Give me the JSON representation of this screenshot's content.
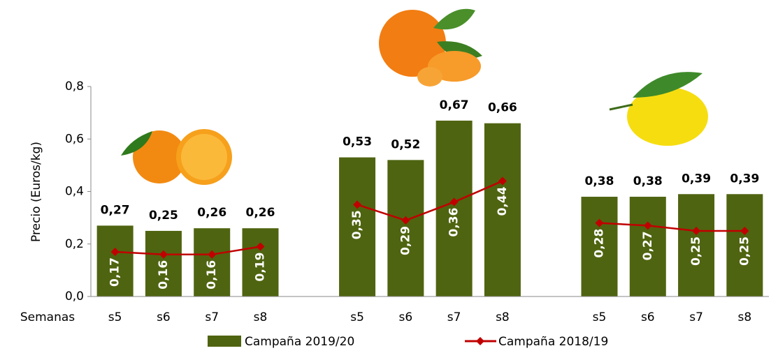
{
  "chart_data": {
    "type": "bar_line",
    "ylabel": "Precio (Euros/kg)",
    "xlabel": "Semanas",
    "categories": [
      "s5",
      "s6",
      "s7",
      "s8",
      null,
      "s5",
      "s6",
      "s7",
      "s8",
      null,
      "s5",
      "s6",
      "s7",
      "s8"
    ],
    "series": [
      {
        "name": "Campaña 2019/20",
        "type": "bar",
        "color": "#4f6410",
        "values": [
          0.27,
          0.25,
          0.26,
          0.26,
          null,
          0.53,
          0.52,
          0.67,
          0.66,
          null,
          0.38,
          0.38,
          0.39,
          0.39
        ],
        "value_labels": [
          "0,27",
          "0,25",
          "0,26",
          "0,26",
          null,
          "0,53",
          "0,52",
          "0,67",
          "0,66",
          null,
          "0,38",
          "0,38",
          "0,39",
          "0,39"
        ]
      },
      {
        "name": "Campaña 2018/19",
        "type": "line",
        "color": "#c00000",
        "values": [
          0.17,
          0.16,
          0.16,
          0.19,
          null,
          0.35,
          0.29,
          0.36,
          0.44,
          null,
          0.28,
          0.27,
          0.25,
          0.25
        ],
        "value_labels": [
          "0,17",
          "0,16",
          "0,16",
          "0,19",
          null,
          "0,35",
          "0,29",
          "0,36",
          "0,44",
          null,
          "0,28",
          "0,27",
          "0,25",
          "0,25"
        ]
      }
    ],
    "ylim": [
      0,
      0.8
    ],
    "yticks": [
      {
        "value": 0,
        "label": "0,0"
      },
      {
        "value": 0.2,
        "label": "0,2"
      },
      {
        "value": 0.4,
        "label": "0,4"
      },
      {
        "value": 0.6,
        "label": "0,6"
      },
      {
        "value": 0.8,
        "label": "0,8"
      }
    ],
    "legend": "bottom"
  }
}
